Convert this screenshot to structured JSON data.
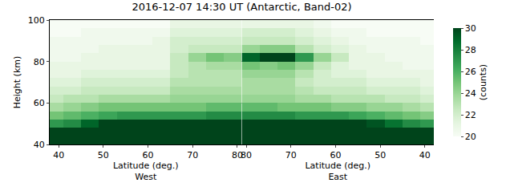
{
  "chart_data": {
    "type": "heatmap",
    "title": "2016-12-07 14:30 UT (Antarctic, Band-02)",
    "ylabel": "Height (km)",
    "ylim": [
      40,
      100
    ],
    "yticks": [
      40,
      60,
      80,
      100
    ],
    "grid": true,
    "color": "Greens",
    "colorbar": {
      "label": "(counts)",
      "range": [
        20,
        30
      ],
      "ticks": [
        20,
        22,
        24,
        26,
        28,
        30
      ]
    },
    "y": [
      42,
      46,
      50,
      54,
      58,
      62,
      66,
      70,
      74,
      78,
      82,
      86,
      90,
      94,
      98
    ],
    "panels": [
      {
        "xlabel": "Latitude (deg.)\nWest",
        "xlim": [
          38,
          81
        ],
        "xticks": [
          40,
          50,
          60,
          70,
          80
        ],
        "x": [
          39,
          43,
          47,
          51,
          55,
          59,
          63,
          67,
          71,
          75,
          79
        ],
        "z": [
          [
            31,
            31,
            31,
            31,
            31,
            31,
            31,
            31,
            31,
            31,
            31
          ],
          [
            30,
            30.5,
            31,
            31,
            31,
            31,
            31,
            31,
            31,
            31,
            31
          ],
          [
            27,
            27.5,
            29,
            30,
            30,
            30,
            30,
            30,
            30,
            30,
            30
          ],
          [
            25,
            25.5,
            26,
            26.5,
            27,
            27,
            27,
            27,
            27,
            27.5,
            27.5
          ],
          [
            23.5,
            24,
            24.5,
            25,
            25,
            25,
            25,
            25,
            25,
            25.5,
            25.5
          ],
          [
            22.5,
            23,
            23,
            23.5,
            23.5,
            23.5,
            23.5,
            24,
            24,
            24,
            24
          ],
          [
            22,
            22,
            22.5,
            22.5,
            22.5,
            22.5,
            22.5,
            23.5,
            23.5,
            23.5,
            23.5
          ],
          [
            21.5,
            21.5,
            22,
            22,
            22,
            22,
            22,
            23,
            23,
            23,
            23
          ],
          [
            21,
            21,
            21.5,
            21.5,
            21.5,
            21.5,
            21.5,
            22.5,
            23,
            23,
            23
          ],
          [
            21,
            21,
            21,
            21,
            21,
            21,
            21,
            22.5,
            23,
            23.5,
            23.5
          ],
          [
            20.5,
            20.5,
            21,
            21,
            21,
            21,
            21,
            22.5,
            24,
            25,
            24.5
          ],
          [
            20.5,
            20.5,
            20.5,
            21,
            21,
            21,
            21,
            22,
            22.5,
            22.5,
            22.5
          ],
          [
            20.5,
            20.5,
            20.5,
            20.5,
            20.5,
            20.5,
            21,
            22,
            22,
            22,
            22
          ],
          [
            20,
            20,
            20.5,
            20.5,
            20.5,
            20.5,
            20.5,
            21.5,
            21.5,
            21.5,
            21.5
          ],
          [
            20,
            20,
            20,
            20,
            20,
            20,
            20,
            21,
            21,
            21,
            21
          ]
        ]
      },
      {
        "xlabel": "Latitude (deg.)\nEast",
        "xlim": [
          81,
          38
        ],
        "xticks": [
          80,
          70,
          60,
          50,
          40
        ],
        "x": [
          79,
          75,
          71,
          67,
          63,
          59,
          55,
          51,
          47,
          43,
          39
        ],
        "z": [
          [
            31,
            31,
            31,
            31,
            31,
            31,
            31,
            31,
            31,
            31,
            31
          ],
          [
            31,
            31,
            31,
            31,
            31,
            31,
            31,
            31,
            31,
            30.5,
            30
          ],
          [
            30,
            30,
            30,
            30,
            30,
            30,
            30,
            29.5,
            28.5,
            27.5,
            27
          ],
          [
            27.5,
            27.5,
            27.5,
            27,
            27,
            27,
            26.5,
            26,
            25.5,
            25,
            24.5
          ],
          [
            25.5,
            25.5,
            25,
            25,
            25,
            24.5,
            24.5,
            24,
            24,
            23.5,
            23
          ],
          [
            24,
            24,
            24,
            23.5,
            23.5,
            23,
            23,
            23,
            22.5,
            22.5,
            22
          ],
          [
            23.5,
            23.5,
            23.5,
            23,
            22.5,
            22.5,
            22.5,
            22,
            22,
            22,
            21.5
          ],
          [
            23.5,
            23.5,
            23.5,
            22.5,
            22,
            22,
            22,
            21.5,
            21.5,
            21.5,
            21
          ],
          [
            24,
            24,
            24,
            23,
            22,
            21.5,
            21.5,
            21,
            21,
            21,
            21
          ],
          [
            25,
            24.5,
            25,
            24,
            22.5,
            21.5,
            21,
            21,
            21,
            20.5,
            20.5
          ],
          [
            29,
            30,
            30,
            27,
            24,
            22.5,
            21,
            21,
            20.5,
            20.5,
            20.5
          ],
          [
            24,
            24.5,
            24.5,
            23,
            22,
            21.5,
            21,
            20.5,
            20.5,
            20.5,
            20.5
          ],
          [
            22.5,
            22.5,
            22.5,
            22,
            21.5,
            21,
            20.5,
            20.5,
            20.5,
            20.5,
            20
          ],
          [
            22,
            22,
            22,
            21.5,
            21,
            20.5,
            20.5,
            20,
            20,
            20,
            20
          ],
          [
            21,
            21,
            21,
            21,
            20.5,
            20,
            20,
            20,
            20,
            20,
            20
          ]
        ]
      }
    ]
  }
}
